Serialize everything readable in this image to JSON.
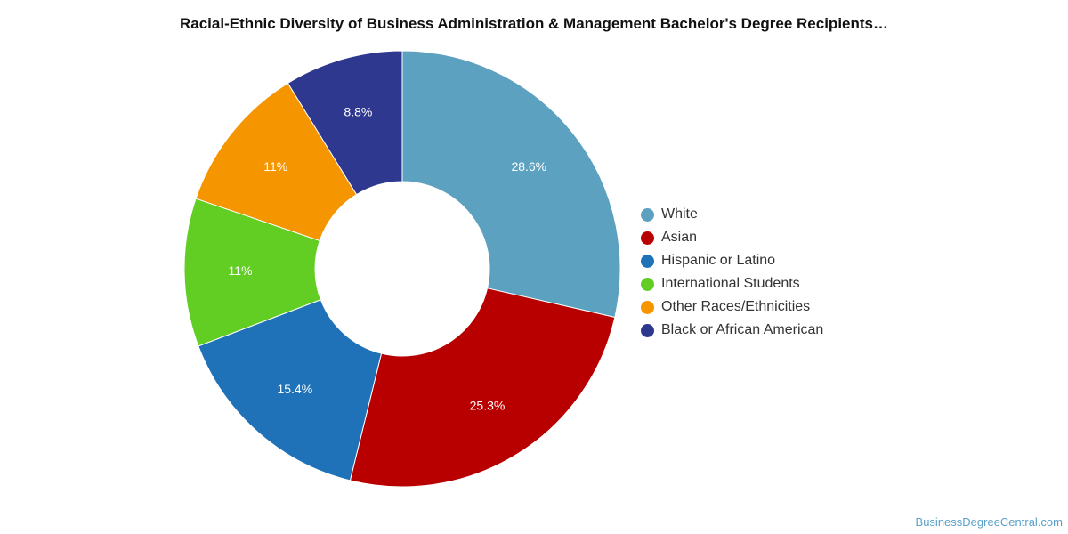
{
  "chart_data": {
    "type": "pie",
    "title": "Racial-Ethnic Diversity of Business Administration & Management Bachelor's Degree Recipients…",
    "donut": true,
    "legend_position": "right",
    "slices": [
      {
        "name": "White",
        "value": 28.6,
        "label": "28.6%",
        "color": "#5ca2c0"
      },
      {
        "name": "Asian",
        "value": 25.3,
        "label": "25.3%",
        "color": "#b80000"
      },
      {
        "name": "Hispanic or Latino",
        "value": 15.4,
        "label": "15.4%",
        "color": "#1f72b8"
      },
      {
        "name": "International Students",
        "value": 11.0,
        "label": "11%",
        "color": "#62cd23"
      },
      {
        "name": "Other Races/Ethnicities",
        "value": 11.0,
        "label": "11%",
        "color": "#f59500"
      },
      {
        "name": "Black or African American",
        "value": 8.8,
        "label": "8.8%",
        "color": "#2e388f"
      }
    ]
  },
  "watermark": "BusinessDegreeCentral.com"
}
